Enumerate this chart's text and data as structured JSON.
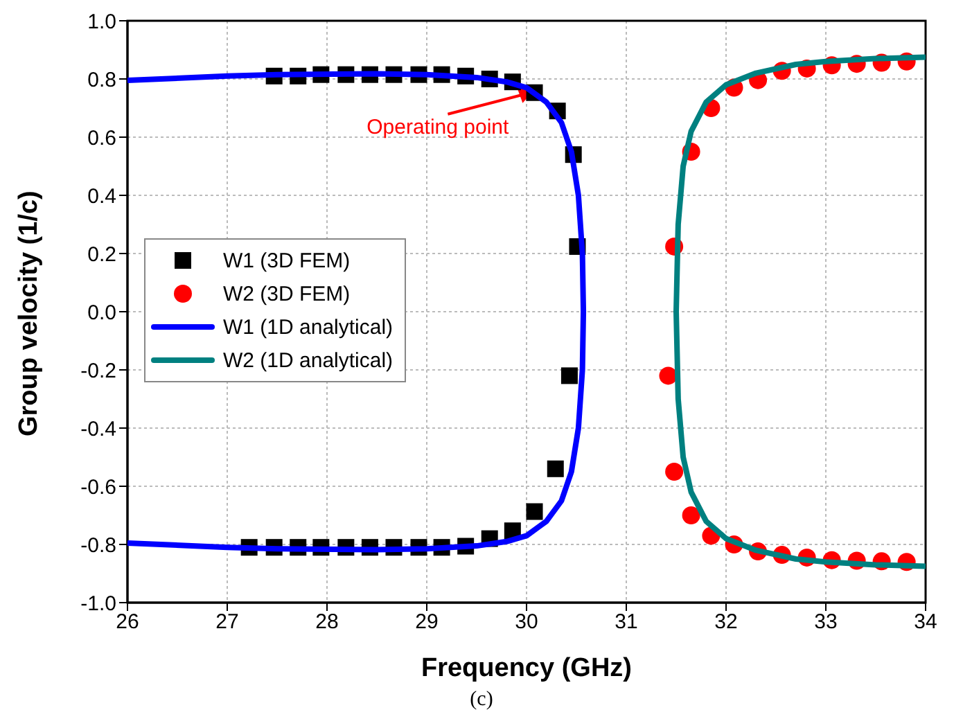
{
  "chart_data": {
    "type": "scatter",
    "xlabel": "Frequency (GHz)",
    "ylabel": "Group velocity (1/c)",
    "xlim": [
      26,
      34
    ],
    "xticks": [
      26,
      27,
      28,
      29,
      30,
      31,
      32,
      33,
      34
    ],
    "ylim": [
      -1.0,
      1.0
    ],
    "yticks": [
      {
        "value": -1.0,
        "label": "-1.0"
      },
      -0.8,
      -0.6,
      -0.4,
      -0.2,
      {
        "value": 0,
        "label": "0.0"
      },
      0.2,
      0.4,
      0.6,
      0.8,
      {
        "value": 1.0,
        "label": "1.0"
      }
    ],
    "grid": true,
    "legend": "left",
    "annotations": [
      {
        "text": "Operating point",
        "x": 30.1,
        "y": 0.76
      },
      "(c)"
    ],
    "series": [
      {
        "name": "W1 (3D FEM)",
        "type": "scatter",
        "marker": "square",
        "color": "#000000",
        "x": [
          27.47,
          27.71,
          27.94,
          28.19,
          28.43,
          28.67,
          28.92,
          29.15,
          29.39,
          29.63,
          29.86,
          30.08,
          30.31,
          30.47,
          30.51,
          30.43,
          30.29,
          30.08,
          29.86,
          29.63,
          29.39,
          29.15,
          28.92,
          28.67,
          28.43,
          28.19,
          27.94,
          27.71,
          27.47,
          27.22
        ],
        "values": [
          0.81,
          0.81,
          0.815,
          0.815,
          0.815,
          0.815,
          0.815,
          0.815,
          0.81,
          0.8,
          0.79,
          0.753,
          0.69,
          0.54,
          0.224,
          -0.22,
          -0.54,
          -0.687,
          -0.753,
          -0.78,
          -0.806,
          -0.81,
          -0.81,
          -0.81,
          -0.81,
          -0.81,
          -0.81,
          -0.81,
          -0.81,
          -0.81
        ]
      },
      {
        "name": "W2 (3D FEM)",
        "type": "scatter",
        "marker": "circle",
        "color": "#ff0000",
        "x": [
          33.81,
          33.56,
          33.31,
          33.06,
          32.81,
          32.56,
          32.32,
          32.08,
          31.85,
          31.65,
          31.48,
          31.42,
          31.48,
          31.65,
          31.85,
          32.08,
          32.32,
          32.56,
          32.81,
          33.06,
          33.31,
          33.56,
          33.81
        ],
        "values": [
          0.86,
          0.856,
          0.852,
          0.847,
          0.836,
          0.828,
          0.796,
          0.77,
          0.7,
          0.55,
          0.224,
          -0.22,
          -0.55,
          -0.7,
          -0.77,
          -0.8,
          -0.824,
          -0.836,
          -0.845,
          -0.854,
          -0.856,
          -0.858,
          -0.86
        ]
      },
      {
        "name": "W1 (1D analytical)",
        "type": "line",
        "marker": "none",
        "color": "#0000ff",
        "x": [
          26,
          27,
          27.5,
          28.5,
          29,
          29.5,
          29.8,
          30,
          30.2,
          30.35,
          30.45,
          30.52,
          30.56,
          30.57,
          30.56,
          30.52,
          30.45,
          30.35,
          30.2,
          30,
          29.8,
          29.5,
          29,
          28.5,
          27.5,
          27,
          26
        ],
        "values": [
          0.795,
          0.81,
          0.815,
          0.818,
          0.815,
          0.805,
          0.79,
          0.77,
          0.72,
          0.65,
          0.55,
          0.4,
          0.2,
          0,
          -0.2,
          -0.4,
          -0.55,
          -0.65,
          -0.72,
          -0.77,
          -0.79,
          -0.805,
          -0.815,
          -0.818,
          -0.815,
          -0.81,
          -0.795
        ]
      },
      {
        "name": "W2 (1D analytical)",
        "type": "line",
        "marker": "none",
        "color": "#008080",
        "x": [
          34,
          33.5,
          33,
          32.7,
          32.3,
          32,
          31.8,
          31.65,
          31.57,
          31.52,
          31.5,
          31.52,
          31.57,
          31.65,
          31.8,
          32,
          32.3,
          32.7,
          33,
          33.5,
          34
        ],
        "values": [
          0.875,
          0.87,
          0.86,
          0.85,
          0.82,
          0.78,
          0.72,
          0.62,
          0.5,
          0.3,
          0,
          -0.3,
          -0.5,
          -0.62,
          -0.72,
          -0.78,
          -0.82,
          -0.85,
          -0.86,
          -0.87,
          -0.875
        ]
      }
    ]
  }
}
